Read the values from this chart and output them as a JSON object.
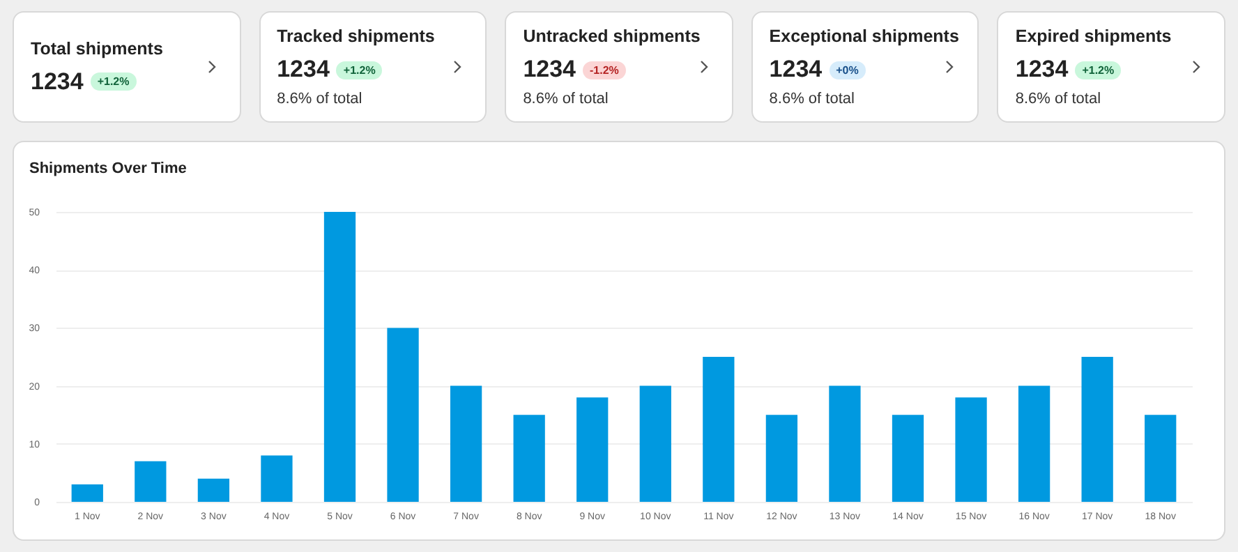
{
  "chart_data": [
    {
      "type": "other",
      "title": "Total shipments",
      "annotations": [
        "1234",
        "+1.2%"
      ]
    },
    {
      "type": "other",
      "title": "Tracked shipments",
      "subtitle": "8.6% of total",
      "annotations": [
        "1234",
        "+1.2%"
      ]
    },
    {
      "type": "other",
      "title": "Untracked shipments",
      "subtitle": "8.6% of total",
      "annotations": [
        "1234",
        "-1.2%"
      ]
    },
    {
      "type": "other",
      "title": "Exceptional shipments",
      "subtitle": "8.6% of total",
      "annotations": [
        "1234",
        "+0%"
      ]
    },
    {
      "type": "other",
      "title": "Expired shipments",
      "subtitle": "8.6% of total",
      "annotations": [
        "1234",
        "+1.2%"
      ]
    },
    {
      "type": "bar",
      "title": "Shipments Over Time",
      "categories": [
        "1 Nov",
        "2 Nov",
        "3 Nov",
        "4 Nov",
        "5 Nov",
        "6 Nov",
        "7 Nov",
        "8 Nov",
        "9 Nov",
        "10 Nov",
        "11 Nov",
        "12 Nov",
        "13 Nov",
        "14 Nov",
        "15 Nov",
        "16 Nov",
        "17 Nov",
        "18 Nov"
      ],
      "values": [
        3,
        7,
        4,
        8,
        50,
        30,
        20,
        15,
        18,
        20,
        25,
        15,
        20,
        15,
        18,
        20,
        25,
        15
      ],
      "color": "#0099e0",
      "ylim": [
        0,
        50
      ],
      "yticks": [
        0,
        10,
        20,
        30,
        40,
        50
      ],
      "grid": "y"
    }
  ]
}
